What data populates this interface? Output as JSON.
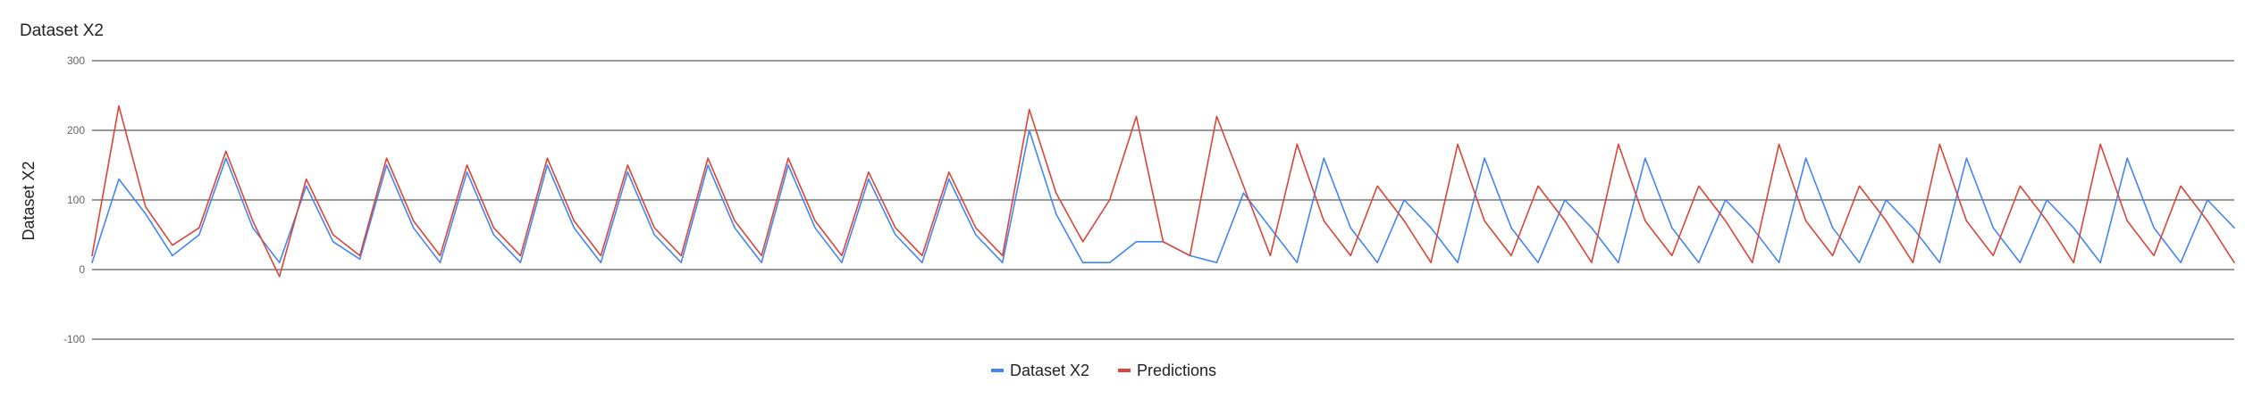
{
  "chart_data": {
    "type": "line",
    "title": "Dataset X2",
    "xlabel": "",
    "ylabel": "Dataset X2",
    "ylim": [
      -100,
      300
    ],
    "yticks": [
      300,
      200,
      100,
      0,
      -100
    ],
    "ytick_labels": [
      "300",
      "200",
      "100",
      "0",
      "-100"
    ],
    "grid": true,
    "legend_position": "bottom",
    "x": [
      0,
      30,
      60,
      90,
      120,
      150,
      180,
      210,
      240,
      270,
      300,
      330,
      360,
      390,
      420,
      450,
      480,
      510,
      540,
      570,
      600,
      630,
      660,
      690,
      720,
      750,
      780,
      810,
      840,
      870,
      900,
      930,
      960,
      990,
      1020,
      1050,
      1080,
      1110,
      1140,
      1170,
      1200,
      1230,
      1260,
      1290,
      1320,
      1350,
      1380,
      1410,
      1440,
      1470,
      1500,
      1530,
      1560,
      1590,
      1620,
      1650,
      1680,
      1710,
      1740,
      1770,
      1800,
      1830,
      1860,
      1890,
      1920,
      1950,
      1980,
      2010,
      2040,
      2070,
      2100,
      2130,
      2160,
      2190,
      2220,
      2250,
      2280,
      2310,
      2340,
      2370,
      2400
    ],
    "series": [
      {
        "name": "Dataset X2",
        "color": "#4285f4",
        "values": [
          10,
          130,
          80,
          20,
          50,
          160,
          60,
          10,
          120,
          40,
          15,
          150,
          60,
          10,
          140,
          50,
          10,
          150,
          60,
          10,
          140,
          50,
          10,
          150,
          60,
          10,
          150,
          60,
          10,
          130,
          50,
          10,
          130,
          50,
          10,
          200,
          80,
          10,
          10,
          40,
          40,
          20,
          10,
          110,
          60,
          10,
          160,
          60,
          10,
          100,
          60,
          10,
          160,
          60,
          10,
          100,
          60,
          10,
          160,
          60,
          10,
          100,
          60,
          10,
          160,
          60,
          10,
          100,
          60,
          10,
          160,
          60,
          10,
          100,
          60,
          10,
          160,
          60,
          10,
          100,
          60
        ]
      },
      {
        "name": "Predictions",
        "color": "#db4437",
        "values": [
          20,
          235,
          90,
          35,
          60,
          170,
          70,
          -10,
          130,
          50,
          20,
          160,
          70,
          20,
          150,
          60,
          20,
          160,
          70,
          20,
          150,
          60,
          20,
          160,
          70,
          20,
          160,
          70,
          20,
          140,
          60,
          20,
          140,
          60,
          20,
          230,
          110,
          40,
          100,
          220,
          40,
          20,
          220,
          120,
          20,
          180,
          70,
          20,
          120,
          70,
          10,
          180,
          70,
          20,
          120,
          70,
          10,
          180,
          70,
          20,
          120,
          70,
          10,
          180,
          70,
          20,
          120,
          70,
          10,
          180,
          70,
          20,
          120,
          70,
          10,
          180,
          70,
          20,
          120,
          70,
          10
        ]
      }
    ]
  }
}
